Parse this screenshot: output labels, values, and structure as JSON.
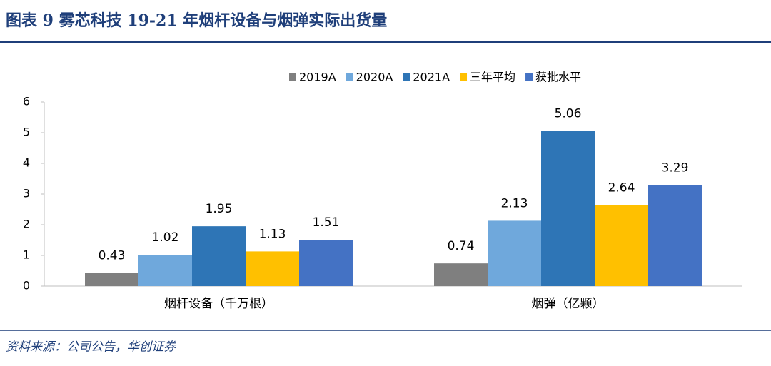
{
  "chart_data": {
    "type": "bar",
    "title": "图表 9  雾芯科技 19-21 年烟杆设备与烟弹实际出货量",
    "source": "资料来源：公司公告，华创证券",
    "categories": [
      "烟杆设备（千万根）",
      "烟弹（亿颗）"
    ],
    "series": [
      {
        "name": "2019A",
        "color": "#7f7f7f",
        "values": [
          0.43,
          0.74
        ]
      },
      {
        "name": "2020A",
        "color": "#6fa8dc",
        "values": [
          1.02,
          2.13
        ]
      },
      {
        "name": "2021A",
        "color": "#2e75b6",
        "values": [
          1.95,
          5.06
        ]
      },
      {
        "name": "三年平均",
        "color": "#ffc000",
        "values": [
          1.13,
          2.64
        ]
      },
      {
        "name": "获批水平",
        "color": "#4472c4",
        "values": [
          1.51,
          3.29
        ]
      }
    ],
    "ylim": [
      0,
      6
    ],
    "yticks": [
      0,
      1,
      2,
      3,
      4,
      5,
      6
    ],
    "legend": "top"
  }
}
